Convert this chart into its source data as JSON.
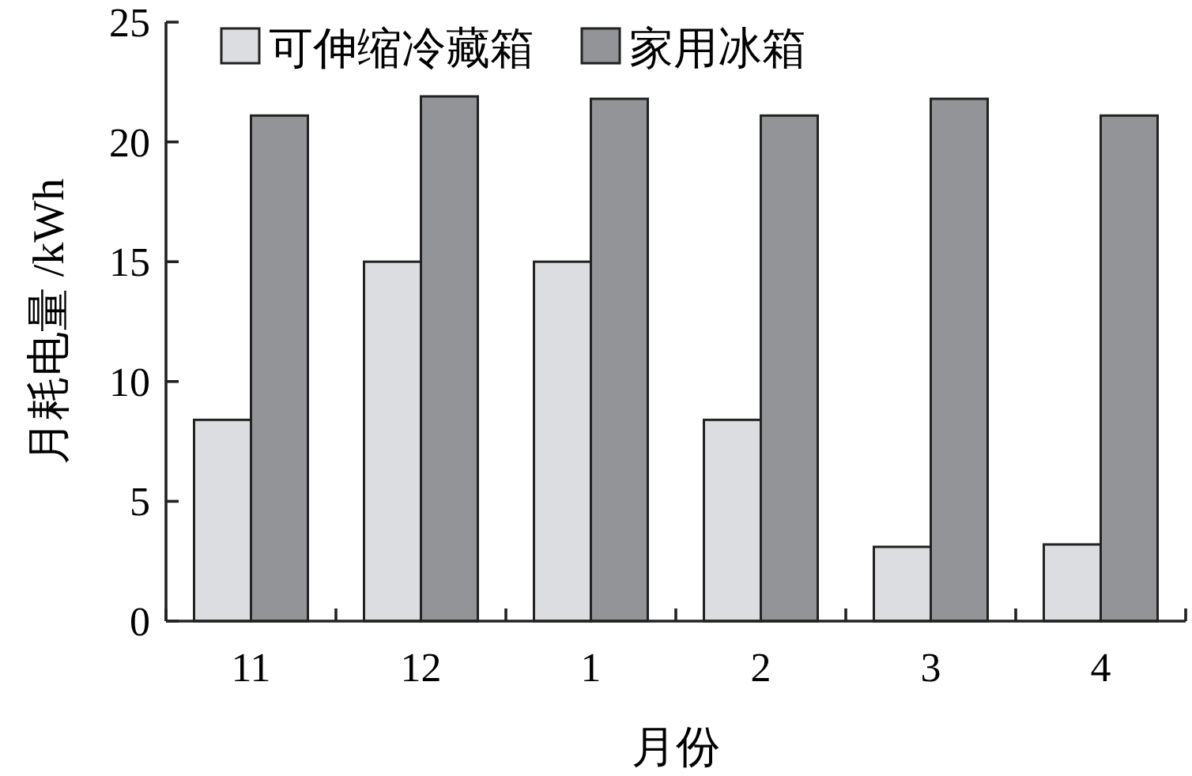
{
  "chart_data": {
    "type": "bar",
    "xlabel": "月份",
    "ylabel": "月耗电量 /kWh",
    "categories": [
      "11",
      "12",
      "1",
      "2",
      "3",
      "4"
    ],
    "series": [
      {
        "name": "可伸缩冷藏箱",
        "color": "#dcdde0",
        "values": [
          8.4,
          15.0,
          15.0,
          8.4,
          3.1,
          3.2
        ]
      },
      {
        "name": "家用冰箱",
        "color": "#939498",
        "values": [
          21.1,
          21.9,
          21.8,
          21.1,
          21.8,
          21.1
        ]
      }
    ],
    "ylim": [
      0,
      25
    ],
    "yticks": [
      0,
      5,
      10,
      15,
      20,
      25
    ],
    "grid": false,
    "legend": "top left"
  }
}
